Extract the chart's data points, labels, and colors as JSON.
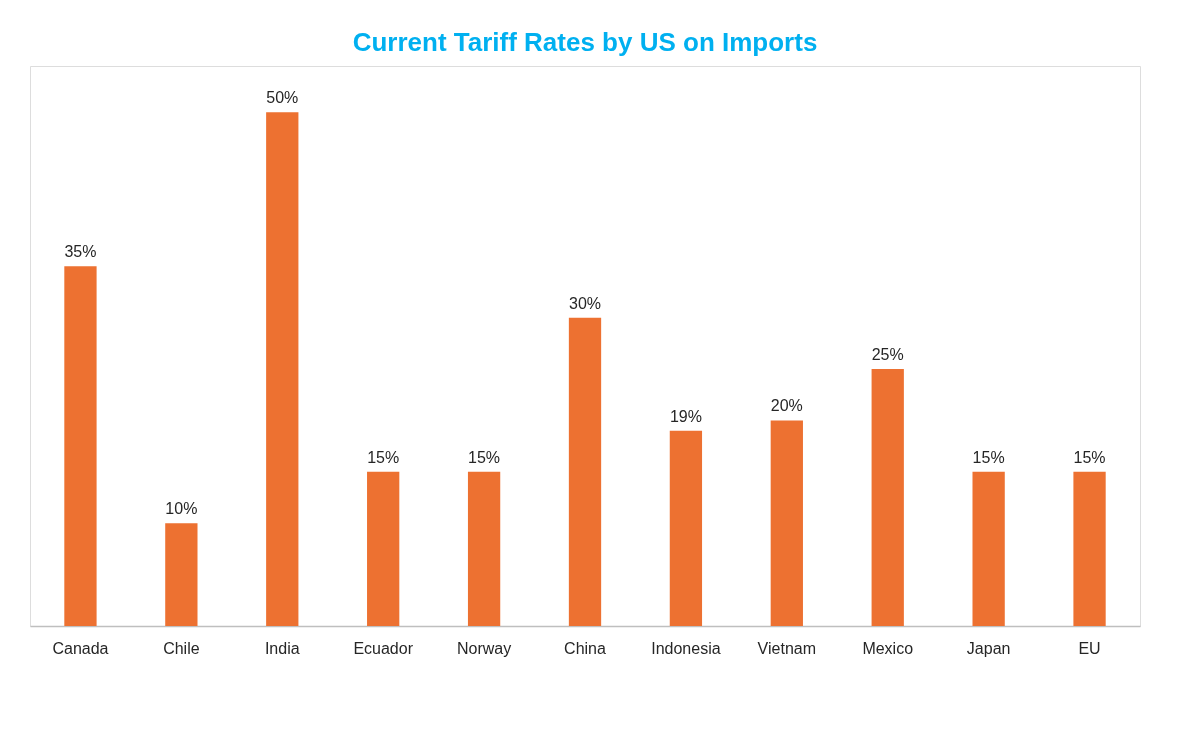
{
  "chart_data": {
    "type": "bar",
    "title": "Current Tariff Rates by US on Imports",
    "categories": [
      "Canada",
      "Chile",
      "India",
      "Ecuador",
      "Norway",
      "China",
      "Indonesia",
      "Vietnam",
      "Mexico",
      "Japan",
      "EU"
    ],
    "values": [
      35,
      10,
      50,
      15,
      15,
      30,
      19,
      20,
      25,
      15,
      15
    ],
    "value_labels": [
      "35%",
      "10%",
      "50%",
      "15%",
      "15%",
      "30%",
      "19%",
      "20%",
      "25%",
      "15%",
      "15%"
    ],
    "color": "#ed7131",
    "grid": false
  }
}
